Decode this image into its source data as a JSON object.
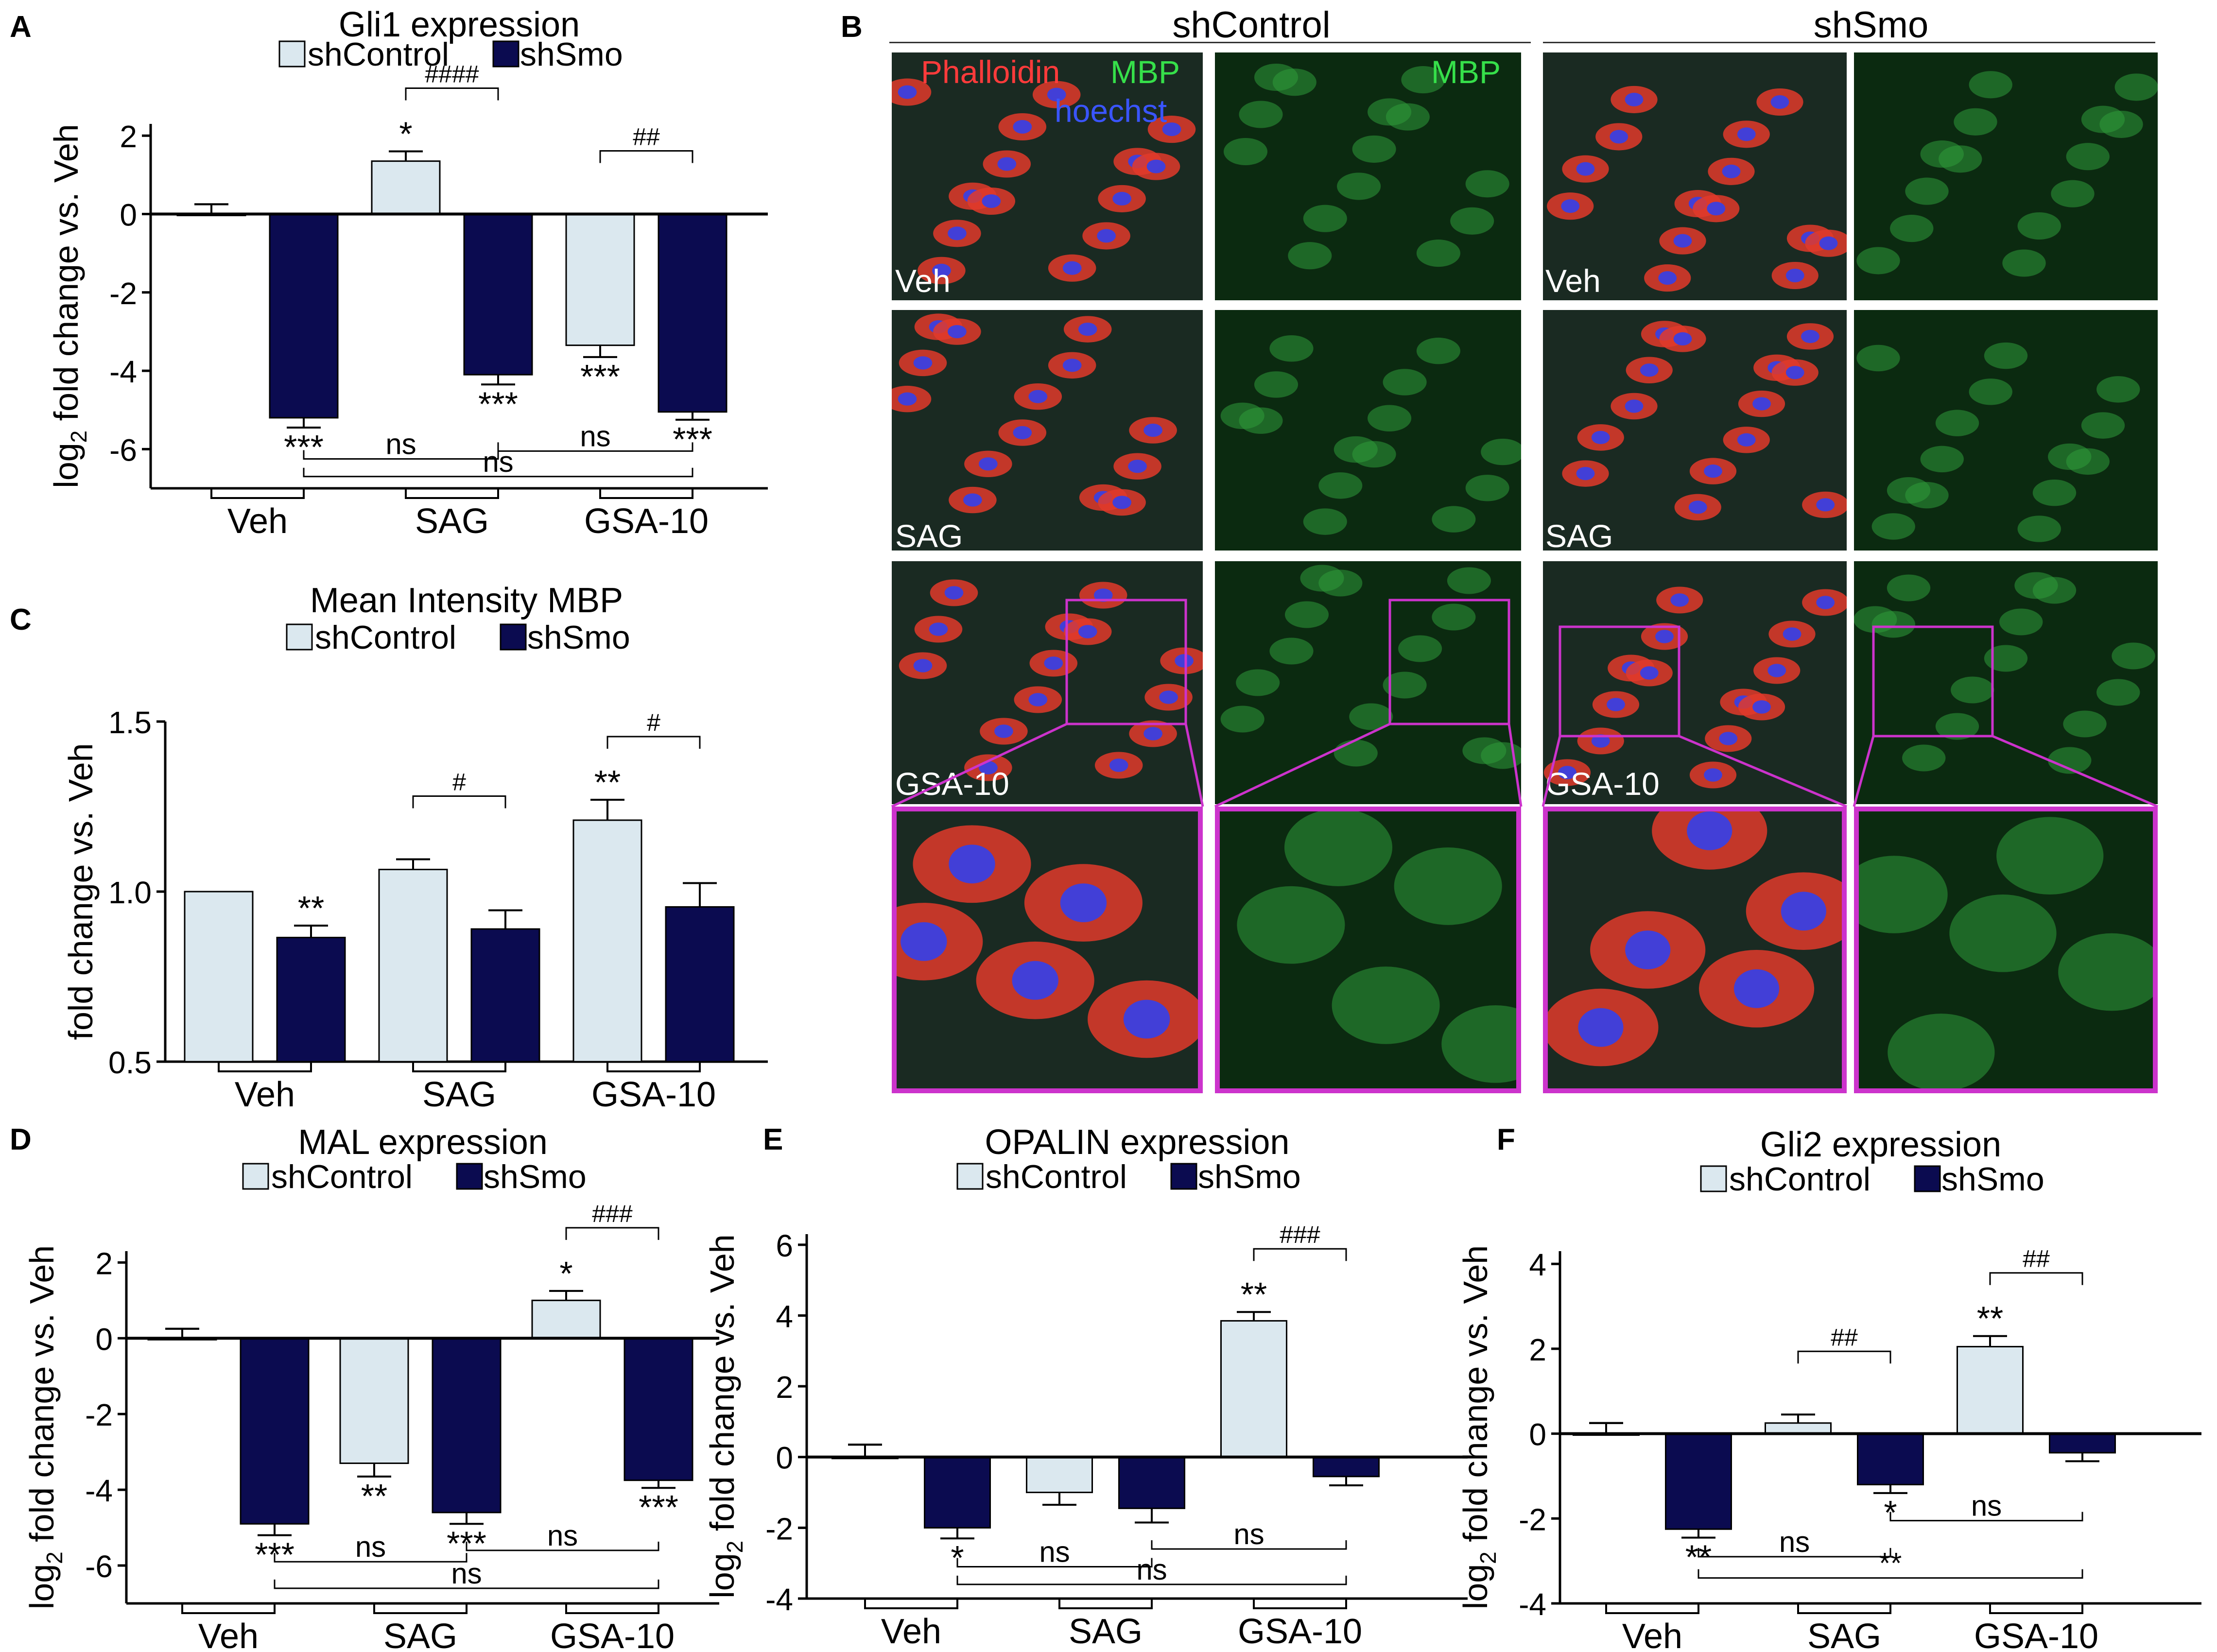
{
  "panels": {
    "A": "A",
    "B": "B",
    "C": "C",
    "D": "D",
    "E": "E",
    "F": "F"
  },
  "colors": {
    "control": "#dbe8ef",
    "smo": "#0b0b50",
    "magenta": "#cc33cc"
  },
  "chart_data": [
    {
      "id": "A",
      "type": "bar",
      "title": "Gli1 expression",
      "legend": [
        "shControl",
        "shSmo"
      ],
      "ylabel_prefix": "log",
      "ylabel_sub": "2",
      "ylabel_rest": " fold change vs. Veh",
      "categories": [
        "Veh",
        "SAG",
        "GSA-10"
      ],
      "ylim": [
        -7,
        2.3
      ],
      "yticks": [
        2,
        0,
        -2,
        -4,
        -6
      ],
      "ytick_labels": [
        "2",
        "0",
        "-2",
        "-4",
        "-6"
      ],
      "baseline": 0,
      "series": [
        {
          "name": "shControl",
          "values": [
            0,
            1.35,
            -3.35
          ],
          "errors": [
            0.25,
            0.25,
            0.3
          ]
        },
        {
          "name": "shSmo",
          "values": [
            -5.2,
            -4.1,
            -5.05
          ],
          "errors": [
            0.25,
            0.25,
            0.2
          ]
        }
      ],
      "stars": [
        {
          "cat": 1,
          "series": 0,
          "text": "*"
        },
        {
          "cat": 0,
          "series": 1,
          "text": "***"
        },
        {
          "cat": 1,
          "series": 1,
          "text": "***"
        },
        {
          "cat": 2,
          "series": 0,
          "text": "***"
        },
        {
          "cat": 2,
          "series": 1,
          "text": "***"
        }
      ],
      "hash": [
        {
          "cat": 1,
          "text": "####"
        },
        {
          "cat": 2,
          "text": "##"
        }
      ],
      "ns": [
        {
          "from": [
            0,
            1
          ],
          "to": [
            1,
            1
          ],
          "level": -6.25,
          "text": "ns"
        },
        {
          "from": [
            1,
            1
          ],
          "to": [
            2,
            1
          ],
          "level": -6.05,
          "text": "ns"
        },
        {
          "from": [
            0,
            1
          ],
          "to": [
            2,
            1
          ],
          "level": -6.7,
          "text": "ns"
        }
      ]
    },
    {
      "id": "C",
      "type": "bar",
      "title": "Mean Intensity MBP",
      "legend": [
        "shControl",
        "shSmo"
      ],
      "ylabel_prefix": "",
      "ylabel_sub": "",
      "ylabel_rest": "fold change vs. Veh",
      "categories": [
        "Veh",
        "SAG",
        "GSA-10"
      ],
      "ylim": [
        0.5,
        1.5
      ],
      "yticks": [
        1.5,
        1.0,
        0.5
      ],
      "ytick_labels": [
        "1.5",
        "1.0",
        "0.5"
      ],
      "baseline": 0.5,
      "series": [
        {
          "name": "shControl",
          "values": [
            1.0,
            1.065,
            1.21
          ],
          "errors": [
            0,
            0.03,
            0.06
          ]
        },
        {
          "name": "shSmo",
          "values": [
            0.865,
            0.89,
            0.955
          ],
          "errors": [
            0.035,
            0.055,
            0.07
          ]
        }
      ],
      "stars": [
        {
          "cat": 0,
          "series": 1,
          "text": "**"
        },
        {
          "cat": 2,
          "series": 0,
          "text": "**"
        }
      ],
      "hash": [
        {
          "cat": 1,
          "text": "#"
        },
        {
          "cat": 2,
          "text": "#"
        }
      ],
      "ns": []
    },
    {
      "id": "D",
      "type": "bar",
      "title": "MAL expression",
      "legend": [
        "shControl",
        "shSmo"
      ],
      "ylabel_prefix": "log",
      "ylabel_sub": "2",
      "ylabel_rest": " fold change vs. Veh",
      "categories": [
        "Veh",
        "SAG",
        "GSA-10"
      ],
      "ylim": [
        -7,
        2.3
      ],
      "yticks": [
        2,
        0,
        -2,
        -4,
        -6
      ],
      "ytick_labels": [
        "2",
        "0",
        "-2",
        "-4",
        "-6"
      ],
      "baseline": 0,
      "series": [
        {
          "name": "shControl",
          "values": [
            0,
            -3.3,
            1.0
          ],
          "errors": [
            0.25,
            0.35,
            0.25
          ]
        },
        {
          "name": "shSmo",
          "values": [
            -4.9,
            -4.6,
            -3.75
          ],
          "errors": [
            0.3,
            0.3,
            0.2
          ]
        }
      ],
      "stars": [
        {
          "cat": 2,
          "series": 0,
          "text": "*"
        },
        {
          "cat": 1,
          "series": 0,
          "text": "**"
        },
        {
          "cat": 0,
          "series": 1,
          "text": "***"
        },
        {
          "cat": 1,
          "series": 1,
          "text": "***"
        },
        {
          "cat": 2,
          "series": 1,
          "text": "***"
        }
      ],
      "hash": [
        {
          "cat": 2,
          "text": "###"
        }
      ],
      "ns": [
        {
          "from": [
            0,
            1
          ],
          "to": [
            1,
            1
          ],
          "level": -5.9,
          "text": "ns"
        },
        {
          "from": [
            1,
            1
          ],
          "to": [
            2,
            1
          ],
          "level": -5.6,
          "text": "ns"
        },
        {
          "from": [
            0,
            1
          ],
          "to": [
            2,
            1
          ],
          "level": -6.6,
          "text": "ns"
        }
      ]
    },
    {
      "id": "E",
      "type": "bar",
      "title": "OPALIN expression",
      "legend": [
        "shControl",
        "shSmo"
      ],
      "ylabel_prefix": "log",
      "ylabel_sub": "2",
      "ylabel_rest": " fold change vs. Veh",
      "categories": [
        "Veh",
        "SAG",
        "GSA-10"
      ],
      "ylim": [
        -4,
        6.3
      ],
      "yticks": [
        6,
        4,
        2,
        0,
        -2,
        -4
      ],
      "ytick_labels": [
        "6",
        "4",
        "2",
        "0",
        "-2",
        "-4"
      ],
      "baseline": 0,
      "series": [
        {
          "name": "shControl",
          "values": [
            0,
            -1.0,
            3.85
          ],
          "errors": [
            0.35,
            0.35,
            0.25
          ]
        },
        {
          "name": "shSmo",
          "values": [
            -2.0,
            -1.45,
            -0.55
          ],
          "errors": [
            0.3,
            0.4,
            0.25
          ]
        }
      ],
      "stars": [
        {
          "cat": 2,
          "series": 0,
          "text": "**"
        },
        {
          "cat": 0,
          "series": 1,
          "text": "*"
        }
      ],
      "hash": [
        {
          "cat": 2,
          "text": "###"
        }
      ],
      "ns": [
        {
          "from": [
            0,
            1
          ],
          "to": [
            1,
            1
          ],
          "level": -3.1,
          "text": "ns"
        },
        {
          "from": [
            1,
            1
          ],
          "to": [
            2,
            1
          ],
          "level": -2.6,
          "text": "ns"
        },
        {
          "from": [
            0,
            1
          ],
          "to": [
            2,
            1
          ],
          "level": -3.6,
          "text": "ns"
        }
      ]
    },
    {
      "id": "F",
      "type": "bar",
      "title": "Gli2 expression",
      "legend": [
        "shControl",
        "shSmo"
      ],
      "ylabel_prefix": "log",
      "ylabel_sub": "2",
      "ylabel_rest": " fold change vs. Veh",
      "categories": [
        "Veh",
        "SAG",
        "GSA-10"
      ],
      "ylim": [
        -4,
        4.3
      ],
      "yticks": [
        4,
        2,
        0,
        -2,
        -4
      ],
      "ytick_labels": [
        "4",
        "2",
        "0",
        "-2",
        "-4"
      ],
      "baseline": 0,
      "series": [
        {
          "name": "shControl",
          "values": [
            0,
            0.25,
            2.05
          ],
          "errors": [
            0.25,
            0.2,
            0.25
          ]
        },
        {
          "name": "shSmo",
          "values": [
            -2.25,
            -1.2,
            -0.45
          ],
          "errors": [
            0.2,
            0.2,
            0.2
          ]
        }
      ],
      "stars": [
        {
          "cat": 2,
          "series": 0,
          "text": "**"
        },
        {
          "cat": 0,
          "series": 1,
          "text": "**"
        },
        {
          "cat": 1,
          "series": 1,
          "text": "*"
        }
      ],
      "hash": [
        {
          "cat": 1,
          "text": "##"
        },
        {
          "cat": 2,
          "text": "##"
        }
      ],
      "ns": [
        {
          "from": [
            0,
            1
          ],
          "to": [
            1,
            1
          ],
          "level": -2.9,
          "text": "ns"
        },
        {
          "from": [
            1,
            1
          ],
          "to": [
            2,
            1
          ],
          "level": -2.05,
          "text": "ns"
        },
        {
          "from": [
            0,
            1
          ],
          "to": [
            2,
            1
          ],
          "level": -3.4,
          "text": "**"
        }
      ]
    }
  ],
  "micrographs": {
    "column_groups": [
      "shControl",
      "shSmo"
    ],
    "legend": {
      "phalloidin": "Phalloidin",
      "mbp": "MBP",
      "hoechst": "hoechst",
      "mbp_only": "MBP"
    },
    "row_labels": [
      "Veh",
      "SAG",
      "GSA-10"
    ]
  }
}
